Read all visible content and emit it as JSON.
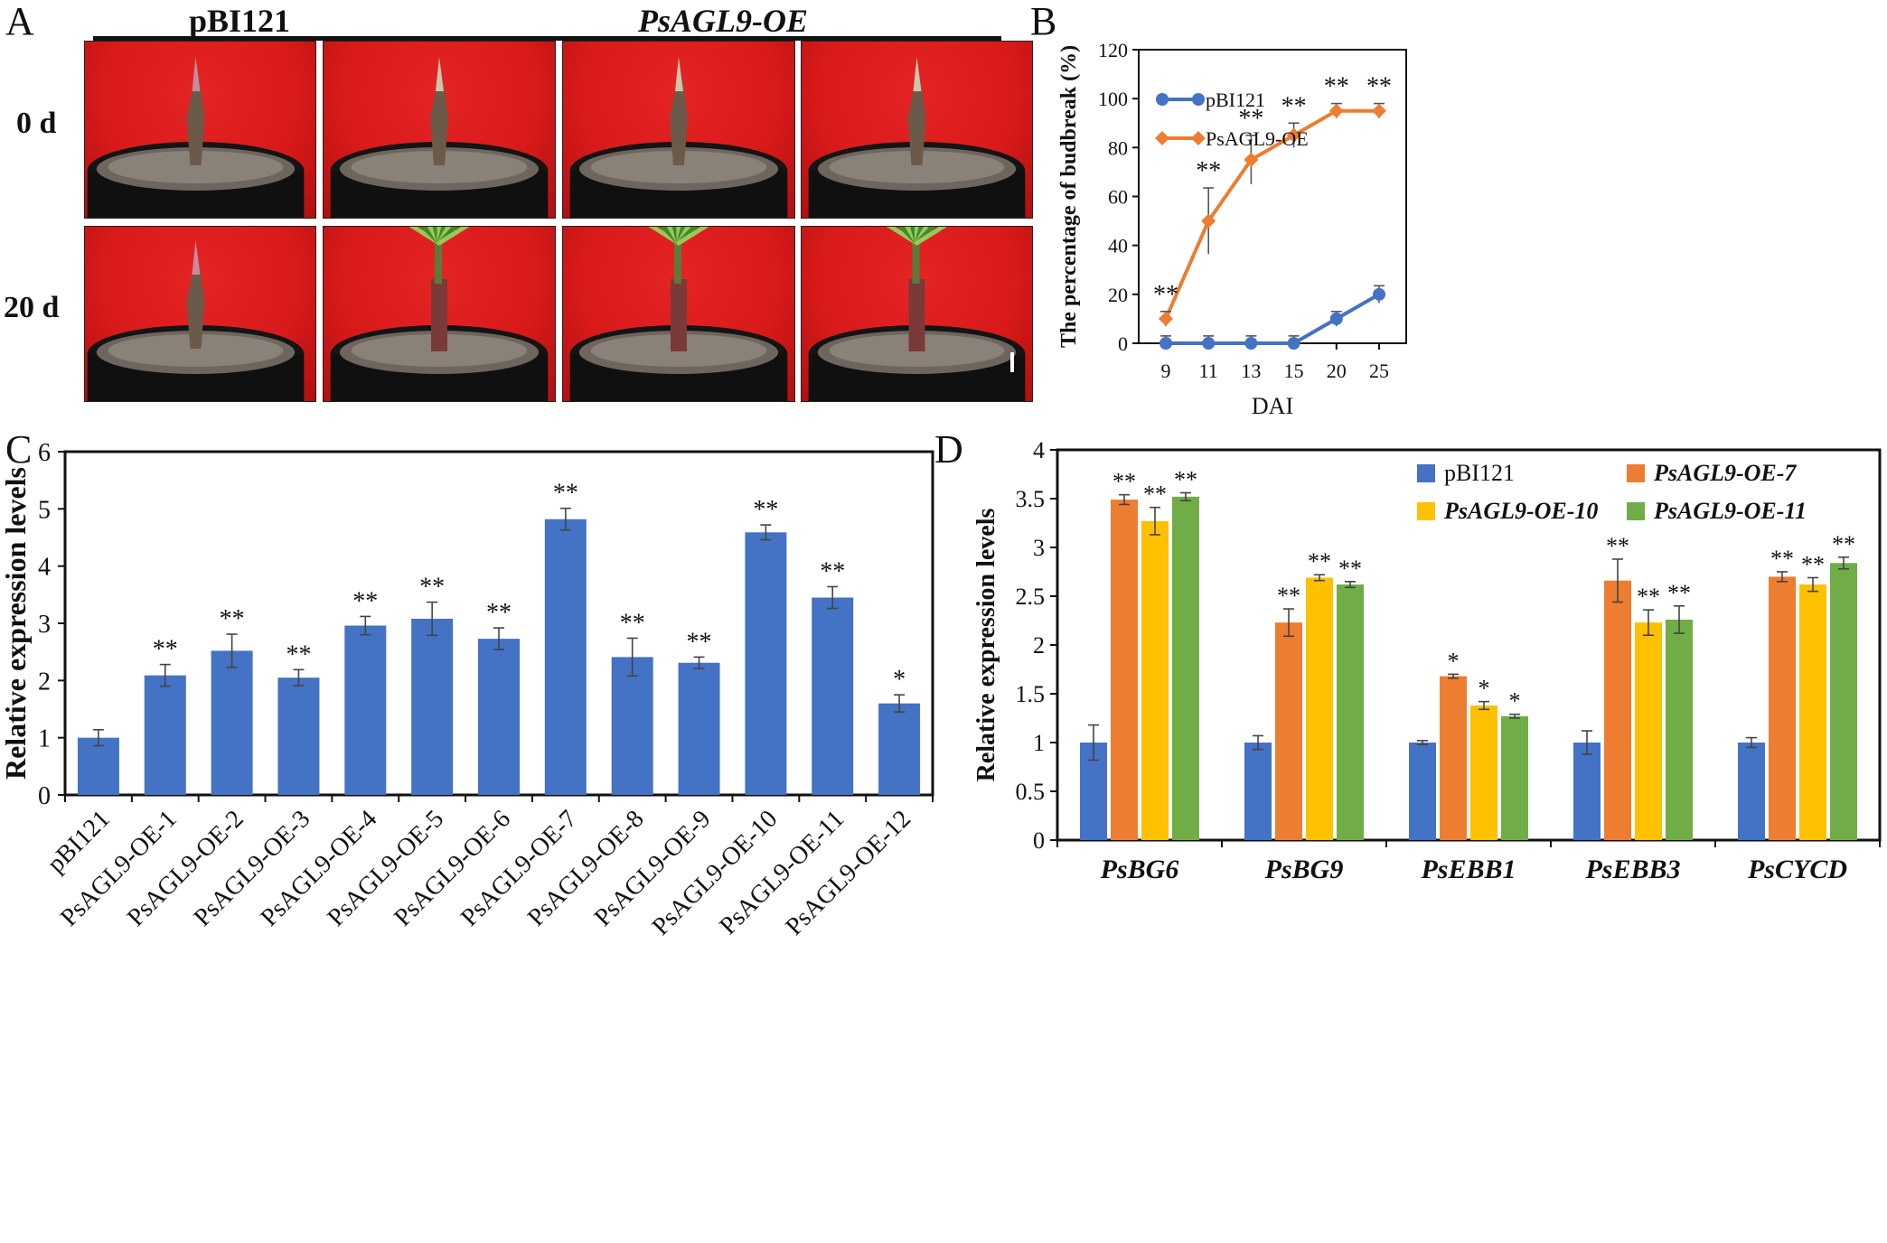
{
  "panels": {
    "A": {
      "letter": "A",
      "group_labels": [
        "pBI121",
        "PsAGL9-OE"
      ],
      "row_labels": [
        "0 d",
        "20 d"
      ]
    },
    "B": {
      "letter": "B"
    },
    "C": {
      "letter": "C"
    },
    "D": {
      "letter": "D"
    }
  },
  "colors": {
    "blue": "#4472c4",
    "orange": "#ed7d31",
    "yellow": "#ffc000",
    "green": "#70ad47",
    "photo_bg": "#d81a1a"
  },
  "chart_data": [
    {
      "id": "B",
      "type": "line",
      "xlabel": "DAI",
      "ylabel": "The percentage of budbreak (%)",
      "categories": [
        "9",
        "11",
        "13",
        "15",
        "20",
        "25"
      ],
      "ylim": [
        0,
        120
      ],
      "yticks": [
        0,
        20,
        40,
        60,
        80,
        100,
        120
      ],
      "legend_position": "top-left",
      "series": [
        {
          "name": "pBI121",
          "color": "#4472c4",
          "marker": "circle",
          "values": [
            0,
            0,
            0,
            0,
            10,
            20
          ],
          "errors": [
            3,
            3,
            3,
            3,
            3,
            3.5
          ],
          "sig": [
            "",
            "",
            "",
            "",
            "",
            ""
          ]
        },
        {
          "name": "PsAGL9-OE",
          "color": "#ed7d31",
          "marker": "diamond",
          "values": [
            10,
            50,
            75,
            85,
            95,
            95
          ],
          "errors": [
            3,
            13.5,
            10,
            5,
            3,
            3
          ],
          "sig": [
            "**",
            "**",
            "**",
            "**",
            "**",
            "**"
          ]
        }
      ]
    },
    {
      "id": "C",
      "type": "bar",
      "ylabel": "Relative expression levels",
      "ylim": [
        0,
        6
      ],
      "yticks": [
        0,
        1,
        2,
        3,
        4,
        5,
        6
      ],
      "categories": [
        "pBI121",
        "PsAGL9-OE-1",
        "PsAGL9-OE-2",
        "PsAGL9-OE-3",
        "PsAGL9-OE-4",
        "PsAGL9-OE-5",
        "PsAGL9-OE-6",
        "PsAGL9-OE-7",
        "PsAGL9-OE-8",
        "PsAGL9-OE-9",
        "PsAGL9-OE-10",
        "PsAGL9-OE-11",
        "PsAGL9-OE-12"
      ],
      "values": [
        1.0,
        2.09,
        2.52,
        2.05,
        2.96,
        3.08,
        2.73,
        4.82,
        2.41,
        2.31,
        4.59,
        3.45,
        1.6
      ],
      "errors": [
        0.14,
        0.19,
        0.29,
        0.14,
        0.16,
        0.29,
        0.19,
        0.19,
        0.33,
        0.1,
        0.13,
        0.19,
        0.15
      ],
      "sig": [
        "",
        "**",
        "**",
        "**",
        "**",
        "**",
        "**",
        "**",
        "**",
        "**",
        "**",
        "**",
        "*"
      ],
      "color": "#4472c4"
    },
    {
      "id": "D",
      "type": "bar",
      "ylabel": "Relative expression levels",
      "ylim": [
        0,
        4
      ],
      "yticks": [
        0,
        0.5,
        1,
        1.5,
        2,
        2.5,
        3,
        3.5,
        4
      ],
      "categories": [
        "PsBG6",
        "PsBG9",
        "PsEBB1",
        "PsEBB3",
        "PsCYCD"
      ],
      "legend_position": "top-right",
      "series": [
        {
          "name": "pBI121",
          "color": "#4472c4",
          "values": [
            1.0,
            1.0,
            1.0,
            1.0,
            1.0
          ],
          "errors": [
            0.18,
            0.07,
            0.02,
            0.12,
            0.05
          ],
          "sig": [
            "",
            "",
            "",
            "",
            ""
          ]
        },
        {
          "name": "PsAGL9-OE-7",
          "color": "#ed7d31",
          "values": [
            3.49,
            2.23,
            1.68,
            2.66,
            2.7
          ],
          "errors": [
            0.05,
            0.14,
            0.02,
            0.22,
            0.05
          ],
          "sig": [
            "**",
            "**",
            "*",
            "**",
            "**"
          ]
        },
        {
          "name": "PsAGL9-OE-10",
          "color": "#ffc000",
          "values": [
            3.27,
            2.69,
            1.38,
            2.23,
            2.62
          ],
          "errors": [
            0.14,
            0.03,
            0.04,
            0.13,
            0.07
          ],
          "sig": [
            "**",
            "**",
            "*",
            "**",
            "**"
          ]
        },
        {
          "name": "PsAGL9-OE-11",
          "color": "#70ad47",
          "values": [
            3.52,
            2.62,
            1.27,
            2.26,
            2.84
          ],
          "errors": [
            0.04,
            0.03,
            0.02,
            0.14,
            0.06
          ],
          "sig": [
            "**",
            "**",
            "*",
            "**",
            "**"
          ]
        }
      ]
    }
  ]
}
